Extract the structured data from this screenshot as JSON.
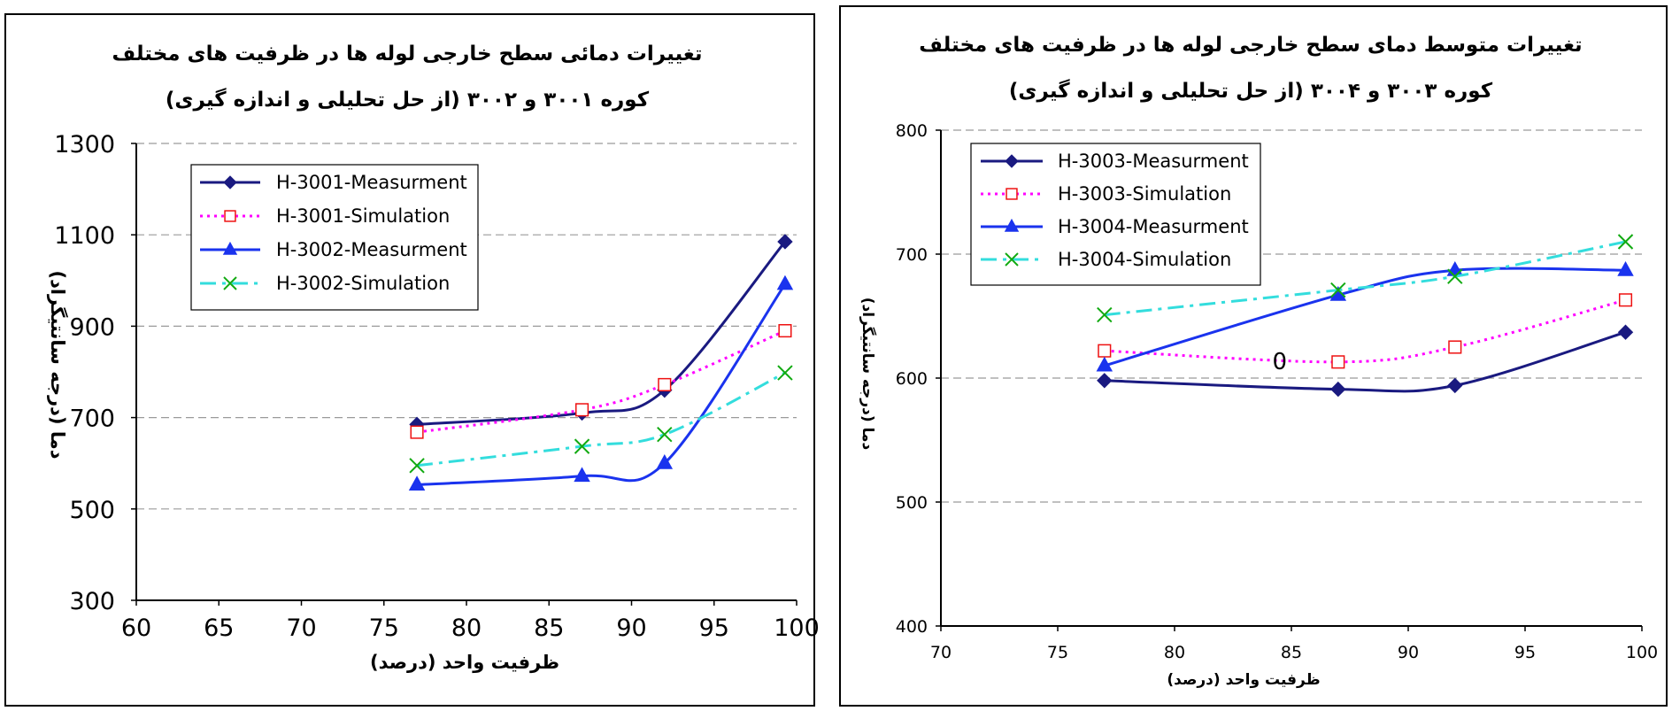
{
  "chart_data": [
    {
      "type": "line",
      "title": "تغییرات دمائی سطح خارجی لوله ها در ظرفیت های مختلف",
      "subtitle": "کوره ۳۰۰۱ و ۳۰۰۲  (از حل تحلیلی و اندازه گیری)",
      "xlabel": "ظرفیت واحد (درصد)",
      "ylabel": "دما (درجه سانتیگراد)",
      "xlim": [
        60,
        100
      ],
      "ylim": [
        300,
        1300
      ],
      "xticks": [
        60,
        65,
        70,
        75,
        80,
        85,
        90,
        95,
        100
      ],
      "yticks": [
        300,
        500,
        700,
        900,
        1100,
        1300
      ],
      "grid": "horizontal dashed",
      "legend_position": "top-left",
      "series": [
        {
          "name": "H-3001-Measurment",
          "x": [
            77,
            87,
            92,
            99.3
          ],
          "y": [
            685,
            710,
            760,
            1085
          ],
          "color": "#1a1a80",
          "style": "solid",
          "marker": "diamond"
        },
        {
          "name": "H-3001-Simulation",
          "x": [
            77,
            87,
            92,
            99.3
          ],
          "y": [
            668,
            717,
            772,
            890
          ],
          "color": "#ff00ff",
          "style": "dotted",
          "marker": "open-square"
        },
        {
          "name": "H-3002-Measurment",
          "x": [
            77,
            87,
            92,
            99.3
          ],
          "y": [
            553,
            572,
            600,
            992
          ],
          "color": "#1a33ee",
          "style": "solid",
          "marker": "triangle"
        },
        {
          "name": "H-3002-Simulation",
          "x": [
            77,
            87,
            92,
            99.3
          ],
          "y": [
            595,
            637,
            663,
            798
          ],
          "color": "#33dddd",
          "style": "dash-dot",
          "marker": "x"
        }
      ]
    },
    {
      "type": "line",
      "title": "تغییرات متوسط دمای سطح خارجی لوله ها در ظرفیت های مختلف",
      "subtitle": "کوره ۳۰۰۳ و ۳۰۰۴  (از حل تحلیلی و اندازه گیری)",
      "xlabel": "ظرفیت واحد (درصد)",
      "ylabel": "دما (درجه سانتیگراد)",
      "xlim": [
        70,
        100
      ],
      "ylim": [
        400,
        800
      ],
      "xticks": [
        70,
        75,
        80,
        85,
        90,
        95,
        100
      ],
      "yticks": [
        400,
        500,
        600,
        700,
        800
      ],
      "grid": "horizontal dashed",
      "legend_position": "top-left",
      "annotation": "0",
      "series": [
        {
          "name": "H-3003-Measurment",
          "x": [
            77,
            87,
            92,
            99.3
          ],
          "y": [
            598,
            591,
            594,
            637
          ],
          "color": "#1a1a80",
          "style": "solid",
          "marker": "diamond"
        },
        {
          "name": "H-3003-Simulation",
          "x": [
            77,
            87,
            92,
            99.3
          ],
          "y": [
            622,
            613,
            625,
            663
          ],
          "color": "#ff00ff",
          "style": "dotted",
          "marker": "open-square"
        },
        {
          "name": "H-3004-Measurment",
          "x": [
            77,
            87,
            92,
            99.3
          ],
          "y": [
            610,
            667,
            687,
            687
          ],
          "color": "#1a33ee",
          "style": "solid",
          "marker": "triangle"
        },
        {
          "name": "H-3004-Simulation",
          "x": [
            77,
            87,
            92,
            99.3
          ],
          "y": [
            651,
            671,
            682,
            710
          ],
          "color": "#33dddd",
          "style": "dash-dot",
          "marker": "x"
        }
      ]
    }
  ]
}
